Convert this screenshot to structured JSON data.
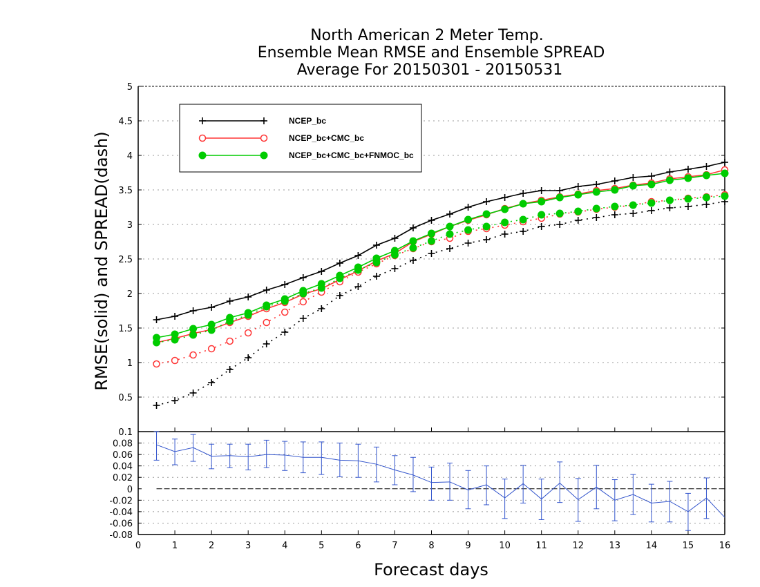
{
  "chart_data": {
    "type": "line",
    "title_lines": [
      "North American 2 Meter Temp.",
      "Ensemble Mean RMSE and Ensemble SPREAD",
      "Average For 20150301 - 20150531"
    ],
    "xlabel": "Forecast days",
    "ylabel": "RMSE(solid) and SPREAD(dash)",
    "xlim": [
      0,
      16
    ],
    "x_ticks": [
      "0",
      "1",
      "2",
      "3",
      "4",
      "5",
      "6",
      "7",
      "8",
      "9",
      "10",
      "11",
      "12",
      "13",
      "14",
      "15",
      "16"
    ],
    "ylim": [
      0,
      5
    ],
    "y_ticks": [
      "0.5",
      "1",
      "1.5",
      "2",
      "2.5",
      "3",
      "3.5",
      "4",
      "4.5",
      "5"
    ],
    "grid": "horizontal dotted",
    "legend_position": "top-left",
    "x": [
      0.5,
      1,
      1.5,
      2,
      2.5,
      3,
      3.5,
      4,
      4.5,
      5,
      5.5,
      6,
      6.5,
      7,
      7.5,
      8,
      8.5,
      9,
      9.5,
      10,
      10.5,
      11,
      11.5,
      12,
      12.5,
      13,
      13.5,
      14,
      14.5,
      15,
      15.5,
      16
    ],
    "series": [
      {
        "name": "NCEP_bc",
        "color": "#000000",
        "marker": "plus",
        "rmse": [
          1.62,
          1.67,
          1.75,
          1.8,
          1.89,
          1.95,
          2.05,
          2.13,
          2.23,
          2.32,
          2.44,
          2.55,
          2.7,
          2.8,
          2.95,
          3.06,
          3.15,
          3.25,
          3.33,
          3.39,
          3.45,
          3.49,
          3.49,
          3.55,
          3.58,
          3.63,
          3.68,
          3.7,
          3.76,
          3.8,
          3.84,
          3.9
        ],
        "spread": [
          0.38,
          0.45,
          0.56,
          0.71,
          0.9,
          1.07,
          1.27,
          1.44,
          1.64,
          1.78,
          1.97,
          2.1,
          2.25,
          2.36,
          2.48,
          2.58,
          2.65,
          2.73,
          2.78,
          2.86,
          2.9,
          2.97,
          3.0,
          3.06,
          3.1,
          3.14,
          3.16,
          3.2,
          3.24,
          3.26,
          3.29,
          3.33
        ]
      },
      {
        "name": "NCEP_bc+CMC_bc",
        "color": "#ff3333",
        "marker": "open-circle",
        "rmse": [
          1.29,
          1.35,
          1.42,
          1.48,
          1.58,
          1.67,
          1.78,
          1.87,
          1.99,
          2.07,
          2.2,
          2.33,
          2.47,
          2.58,
          2.75,
          2.86,
          2.97,
          3.06,
          3.14,
          3.23,
          3.3,
          3.35,
          3.4,
          3.44,
          3.49,
          3.52,
          3.57,
          3.6,
          3.66,
          3.69,
          3.72,
          3.79
        ],
        "spread": [
          0.98,
          1.03,
          1.11,
          1.2,
          1.31,
          1.43,
          1.58,
          1.73,
          1.88,
          2.02,
          2.17,
          2.31,
          2.43,
          2.55,
          2.65,
          2.75,
          2.8,
          2.9,
          2.94,
          2.99,
          3.04,
          3.09,
          3.15,
          3.18,
          3.22,
          3.25,
          3.28,
          3.33,
          3.35,
          3.38,
          3.4,
          3.43
        ]
      },
      {
        "name": "NCEP_bc+CMC_bc+FNMOC_bc",
        "color": "#00cc00",
        "marker": "filled-circle",
        "rmse": [
          1.36,
          1.41,
          1.49,
          1.55,
          1.65,
          1.72,
          1.83,
          1.92,
          2.04,
          2.14,
          2.26,
          2.38,
          2.51,
          2.62,
          2.76,
          2.87,
          2.97,
          3.07,
          3.15,
          3.22,
          3.3,
          3.33,
          3.39,
          3.43,
          3.47,
          3.5,
          3.56,
          3.58,
          3.64,
          3.67,
          3.71,
          3.74
        ],
        "spread": [
          1.29,
          1.33,
          1.4,
          1.47,
          1.6,
          1.69,
          1.81,
          1.89,
          2.0,
          2.08,
          2.22,
          2.34,
          2.45,
          2.56,
          2.66,
          2.76,
          2.86,
          2.92,
          2.97,
          3.03,
          3.07,
          3.14,
          3.16,
          3.19,
          3.23,
          3.26,
          3.28,
          3.31,
          3.35,
          3.37,
          3.39,
          3.41
        ]
      }
    ],
    "difference_panel": {
      "ylim": [
        -0.08,
        0.1
      ],
      "y_ticks": [
        "-0.08",
        "-0.06",
        "-0.04",
        "-0.02",
        "0",
        "0.02",
        "0.04",
        "0.06",
        "0.08",
        "0.1"
      ],
      "color": "#3355cc",
      "values": [
        0.077,
        0.065,
        0.072,
        0.057,
        0.058,
        0.056,
        0.06,
        0.059,
        0.055,
        0.055,
        0.05,
        0.049,
        0.043,
        0.033,
        0.024,
        0.011,
        0.012,
        -0.002,
        0.007,
        -0.016,
        0.009,
        -0.018,
        0.01,
        -0.019,
        0.003,
        -0.02,
        -0.01,
        -0.025,
        -0.022,
        -0.04,
        -0.016,
        -0.05
      ],
      "err_low": [
        0.05,
        0.042,
        0.048,
        0.035,
        0.037,
        0.033,
        0.037,
        0.032,
        0.028,
        0.025,
        0.021,
        0.02,
        0.012,
        0.007,
        -0.005,
        -0.02,
        -0.02,
        -0.035,
        -0.028,
        -0.052,
        -0.025,
        -0.054,
        -0.024,
        -0.057,
        -0.035,
        -0.056,
        -0.045,
        -0.058,
        -0.058,
        -0.073,
        -0.052,
        -0.05
      ],
      "err_high": [
        0.1,
        0.087,
        0.095,
        0.078,
        0.078,
        0.078,
        0.085,
        0.083,
        0.082,
        0.082,
        0.08,
        0.078,
        0.073,
        0.058,
        0.055,
        0.038,
        0.045,
        0.032,
        0.04,
        0.017,
        0.041,
        0.017,
        0.047,
        0.018,
        0.041,
        0.016,
        0.025,
        0.008,
        0.013,
        -0.008,
        0.019,
        -0.05
      ]
    }
  }
}
